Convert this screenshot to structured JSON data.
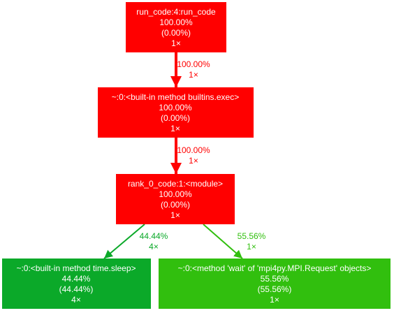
{
  "graph": {
    "nodes": [
      {
        "id": "run_code",
        "label": "run_code:4:run_code",
        "total": "100.00%",
        "self": "(0.00%)",
        "calls": "1×",
        "color": "#ff0000",
        "text_color": "#ffffff"
      },
      {
        "id": "builtins_exec",
        "label": "~:0:<built-in method builtins.exec>",
        "total": "100.00%",
        "self": "(0.00%)",
        "calls": "1×",
        "color": "#ff0000",
        "text_color": "#ffffff"
      },
      {
        "id": "rank_0_module",
        "label": "rank_0_code:1:<module>",
        "total": "100.00%",
        "self": "(0.00%)",
        "calls": "1×",
        "color": "#ff0000",
        "text_color": "#ffffff"
      },
      {
        "id": "time_sleep",
        "label": "~:0:<built-in method time.sleep>",
        "total": "44.44%",
        "self": "(44.44%)",
        "calls": "4×",
        "color": "#0ba929",
        "text_color": "#ffffff"
      },
      {
        "id": "mpi_wait",
        "label": "~:0:<method 'wait' of 'mpi4py.MPI.Request' objects>",
        "total": "55.56%",
        "self": "(55.56%)",
        "calls": "1×",
        "color": "#31bf0e",
        "text_color": "#ffffff"
      }
    ],
    "edges": [
      {
        "id": "e_run_exec",
        "from": "run_code",
        "to": "builtins_exec",
        "percent": "100.00%",
        "calls": "1×",
        "color": "#ff0000"
      },
      {
        "id": "e_exec_module",
        "from": "builtins_exec",
        "to": "rank_0_module",
        "percent": "100.00%",
        "calls": "1×",
        "color": "#ff0000"
      },
      {
        "id": "e_module_sleep",
        "from": "rank_0_module",
        "to": "time_sleep",
        "percent": "44.44%",
        "calls": "4×",
        "color": "#0ba929"
      },
      {
        "id": "e_module_wait",
        "from": "rank_0_module",
        "to": "mpi_wait",
        "percent": "55.56%",
        "calls": "1×",
        "color": "#31bf0e"
      }
    ]
  }
}
